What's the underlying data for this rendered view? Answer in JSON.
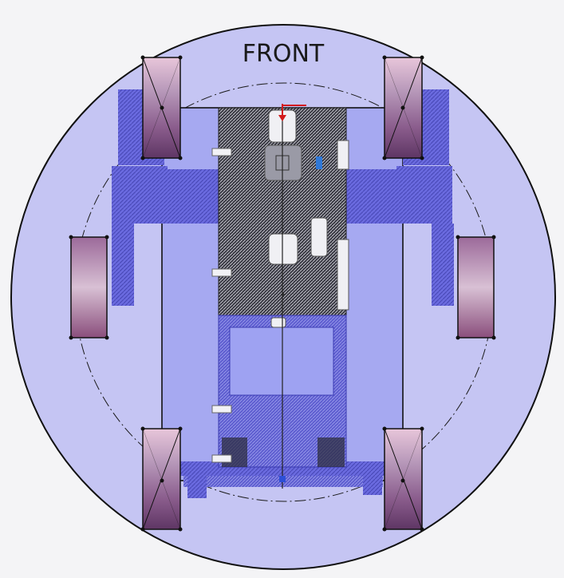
{
  "diagram": {
    "front_label": "FRONT"
  },
  "colors": {
    "background": "#f4f4f6",
    "outer_disc": "#c4c4f2",
    "inner_frame": "#a5a8f0",
    "chassis_dark": "#2a2a34",
    "chassis_blue": "#6a6ad8",
    "arm_blue": "#6e6ee2",
    "wheel_top": "#e6c4d8",
    "wheel_mid": "#b89ab8",
    "wheel_dark": "#7a4a7a",
    "outline": "#111111",
    "axis_red": "#d21a1a"
  },
  "icons": [
    "wheel-icon",
    "motor-icon",
    "axis-origin-icon"
  ]
}
